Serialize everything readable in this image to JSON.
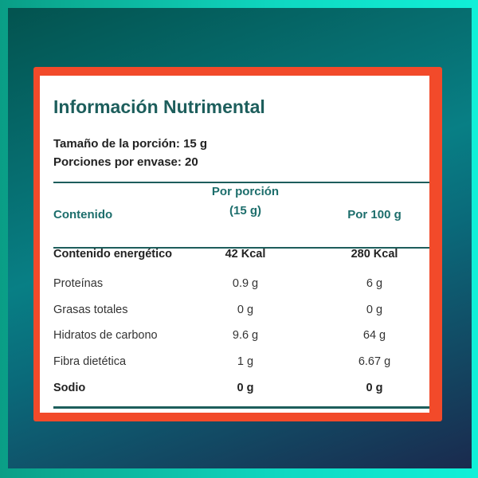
{
  "title": "Información Nutrimental",
  "serving_size": "Tamaño de la porción: 15 g",
  "servings_per_container": "Porciones por envase: 20",
  "header": {
    "col0": "Contenido",
    "col1_line1": "Por porción",
    "col1_line2": "(15 g)",
    "col2": "Por 100 g"
  },
  "rows": [
    {
      "name": "Contenido energético",
      "per_serving": "42 Kcal",
      "per_100g": "280 Kcal",
      "bold": true
    },
    {
      "name": "Proteínas",
      "per_serving": "0.9 g",
      "per_100g": "6 g",
      "bold": false
    },
    {
      "name": "Grasas totales",
      "per_serving": "0 g",
      "per_100g": "0 g",
      "bold": false
    },
    {
      "name": "Hidratos de carbono",
      "per_serving": "9.6 g",
      "per_100g": "64 g",
      "bold": false
    },
    {
      "name": "Fibra dietética",
      "per_serving": "1 g",
      "per_100g": "6.67 g",
      "bold": false
    },
    {
      "name": "Sodio",
      "per_serving": "0 g",
      "per_100g": "0 g",
      "bold": true
    }
  ],
  "colors": {
    "accent": "#1d5e5c",
    "border": "#f24a2a",
    "frame": "#10f0d8"
  }
}
